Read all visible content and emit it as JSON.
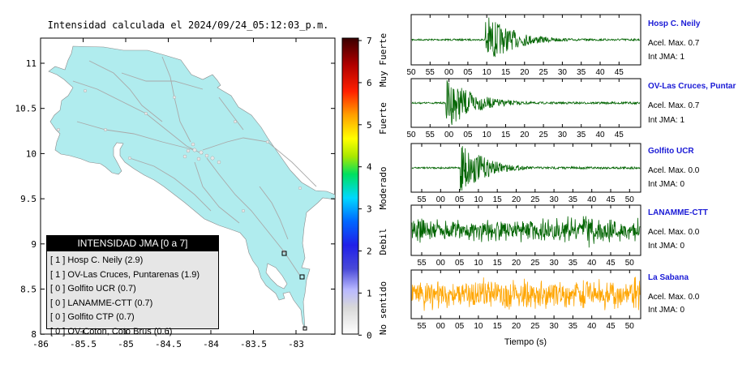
{
  "map": {
    "title": "Intensidad calculada el 2024/09/24_05:12:03_p.m.",
    "x_ticks": [
      "-86",
      "-85.5",
      "-85",
      "-84.5",
      "-84",
      "-83.5",
      "-83"
    ],
    "y_ticks": [
      "11",
      "10.5",
      "10",
      "9.5",
      "9",
      "8.5",
      "8"
    ],
    "colorbar_ticks": [
      "7",
      "6",
      "5",
      "4",
      "3",
      "2",
      "1",
      "0"
    ],
    "colorbar_levels": [
      "Muy Fuerte",
      "Fuerte",
      "Moderado",
      "Debil",
      "No sentido"
    ],
    "land_color": "#b0ecee"
  },
  "legend": {
    "title": "INTENSIDAD JMA [0 a 7]",
    "items": [
      "[ 1 ]  Hosp C. Neily (2.9)",
      "[ 1 ]  OV-Las Cruces, Puntarenas (1.9)",
      "[ 0 ]  Golfito UCR (0.7)",
      "[ 0 ]  LANAMME-CTT (0.7)",
      "[ 0 ]  Golfito CTP (0.7)",
      "[ 0 ]  OV-Coton, Coto Brus (0.6)"
    ]
  },
  "traces": {
    "xlabel": "Tiempo (s)",
    "stations": [
      {
        "name": "Hosp C. Neily",
        "acel": "Acel. Max. 0.7",
        "int": "Int JMA: 1",
        "color": "#006400",
        "ticks": [
          "50",
          "55",
          "00",
          "05",
          "10",
          "15",
          "20",
          "25",
          "30",
          "35",
          "40",
          "45"
        ]
      },
      {
        "name": "OV-Las Cruces, Puntar",
        "acel": "Acel. Max. 0.7",
        "int": "Int JMA: 1",
        "color": "#006400",
        "ticks": [
          "50",
          "55",
          "00",
          "05",
          "10",
          "15",
          "20",
          "25",
          "30",
          "35",
          "40",
          "45"
        ]
      },
      {
        "name": "Golfito UCR",
        "acel": "Acel. Max. 0.0",
        "int": "Int JMA: 0",
        "color": "#006400",
        "ticks": [
          "55",
          "00",
          "05",
          "10",
          "15",
          "20",
          "25",
          "30",
          "35",
          "40",
          "45",
          "50"
        ]
      },
      {
        "name": "LANAMME-CTT",
        "acel": "Acel. Max. 0.0",
        "int": "Int JMA: 0",
        "color": "#006400",
        "ticks": [
          "55",
          "00",
          "05",
          "10",
          "15",
          "20",
          "25",
          "30",
          "35",
          "40",
          "45",
          "50"
        ]
      },
      {
        "name": "La Sabana",
        "acel": "Acel. Max. 0.0",
        "int": "Int JMA: 0",
        "color": "#ffa500",
        "ticks": [
          "55",
          "00",
          "05",
          "10",
          "15",
          "20",
          "25",
          "30",
          "35",
          "40",
          "45",
          "50"
        ]
      }
    ]
  }
}
